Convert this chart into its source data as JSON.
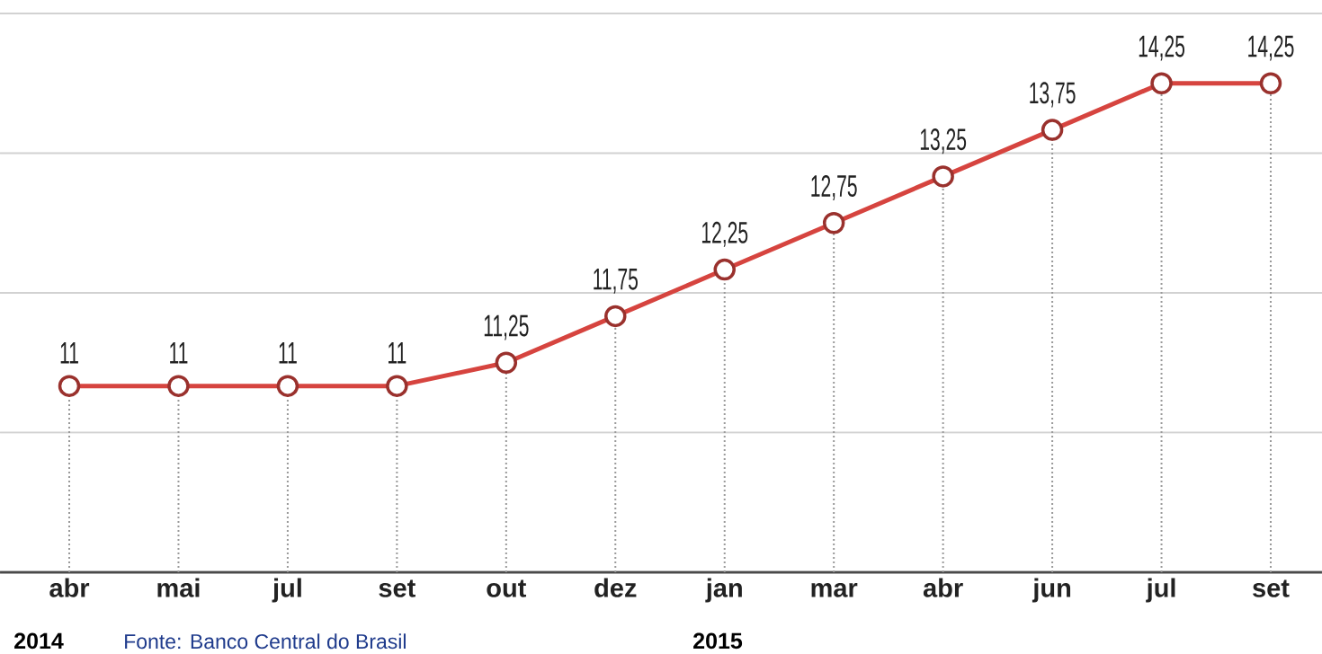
{
  "chart_data": {
    "type": "line",
    "categories": [
      "abr",
      "mai",
      "jul",
      "set",
      "out",
      "dez",
      "jan",
      "mar",
      "abr",
      "jun",
      "jul",
      "set"
    ],
    "values": [
      11,
      11,
      11,
      11,
      11.25,
      11.75,
      12.25,
      12.75,
      13.25,
      13.75,
      14.25,
      14.25
    ],
    "value_labels": [
      "11",
      "11",
      "11",
      "11",
      "11,25",
      "11,75",
      "12,25",
      "12,75",
      "13,25",
      "13,75",
      "14,25",
      "14,25"
    ],
    "color": "#d6443f",
    "marker": "circle",
    "grid": true,
    "tick_labels": "x",
    "ylim": [
      9,
      15
    ],
    "yticks": [
      {
        "value": 10.5,
        "label": null
      },
      {
        "value": 12,
        "label": null
      },
      {
        "value": 13.5,
        "label": null
      },
      {
        "value": 15,
        "label": null
      }
    ],
    "annotations": [
      "2014",
      "2015",
      "Fonte: Banco Central do Brasil"
    ]
  }
}
